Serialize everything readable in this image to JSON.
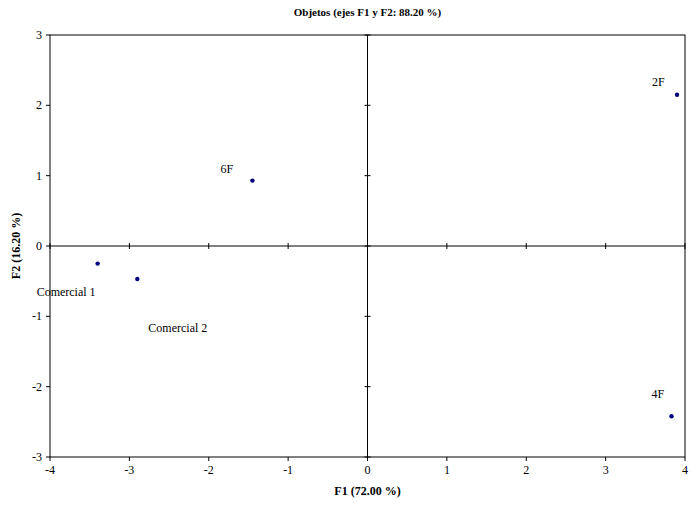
{
  "chart_data": {
    "type": "scatter",
    "title": "Objetos (ejes F1 y F2: 88.20 %)",
    "x_label": "F1 (72.00 %)",
    "y_label": "F2 (16.20 %)",
    "point_labels": [
      "2F",
      "6F",
      "Comercial 1",
      "Comercial 2",
      "4F"
    ],
    "x": [
      3.9,
      -1.45,
      -3.4,
      -2.9,
      3.83
    ],
    "values": [
      2.15,
      0.93,
      -0.25,
      -0.47,
      -2.42
    ],
    "color": "#00007f",
    "marker": "circle",
    "grid": false,
    "xlim": [
      -4,
      4
    ],
    "xticks": [
      -4,
      -3,
      -2,
      -1,
      0,
      1,
      2,
      3,
      4
    ],
    "ylim": [
      -3,
      3
    ],
    "yticks": [
      -3,
      -2,
      -1,
      0,
      1,
      2,
      3
    ]
  }
}
